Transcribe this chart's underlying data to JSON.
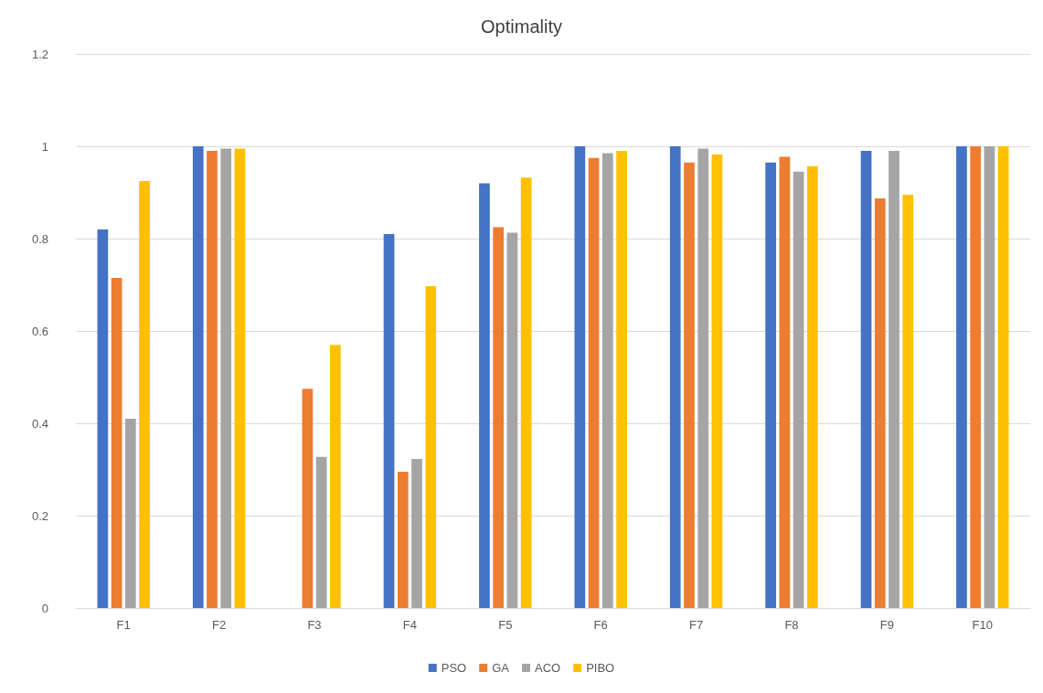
{
  "chart_data": {
    "type": "bar",
    "title": "Optimality",
    "categories": [
      "F1",
      "F2",
      "F3",
      "F4",
      "F5",
      "F6",
      "F7",
      "F8",
      "F9",
      "F10"
    ],
    "series": [
      {
        "name": "PSO",
        "color": "#4472c4",
        "values": [
          0.82,
          1,
          0,
          0.81,
          0.92,
          1,
          1,
          0.965,
          0.99,
          1
        ]
      },
      {
        "name": "GA",
        "color": "#ed7d31",
        "values": [
          0.715,
          0.99,
          0.475,
          0.295,
          0.825,
          0.975,
          0.965,
          0.977,
          0.887,
          1
        ]
      },
      {
        "name": "ACO",
        "color": "#a5a5a5",
        "values": [
          0.41,
          0.995,
          0.327,
          0.323,
          0.813,
          0.985,
          0.995,
          0.945,
          0.99,
          1
        ]
      },
      {
        "name": "PIBO",
        "color": "#ffc000",
        "values": [
          0.925,
          0.995,
          0.57,
          0.697,
          0.932,
          0.99,
          0.982,
          0.957,
          0.895,
          1
        ]
      }
    ],
    "ylim": [
      0,
      1.2
    ],
    "yticks": [
      0,
      0.2,
      0.4,
      0.6,
      0.8,
      1,
      1.2
    ],
    "grid": "y",
    "legend": "bottom"
  }
}
